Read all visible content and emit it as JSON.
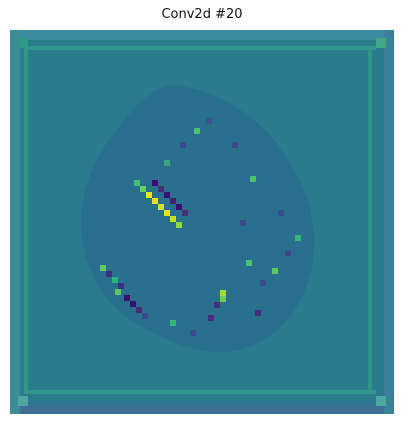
{
  "title": "Conv2d #20",
  "image": {
    "description_name": "conv2d-feature-map",
    "colormap": "viridis",
    "background_color": "#2a7b8e",
    "border_color": "#3a6a90",
    "border_light": "#3f9e89",
    "bright_color": "#e8e51b",
    "dark_color": "#3b0f70"
  }
}
